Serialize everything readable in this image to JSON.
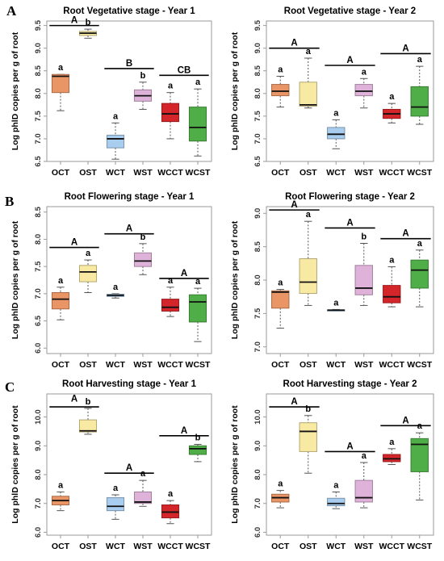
{
  "panel_labels": [
    "A",
    "B",
    "C"
  ],
  "colors": {
    "OCT": "#ea9566",
    "OST": "#f8e9a3",
    "WCT": "#a9cdef",
    "WST": "#dfb3d9",
    "WCCT": "#d4262a",
    "WCST": "#4fae47",
    "frame": "#9a9a9a",
    "text": "#000000"
  },
  "chart_data": [
    {
      "type": "box",
      "title": "Root Vegetative stage - Year 1",
      "ylabel": "Log phlD copies per g of root",
      "ylim": [
        6.5,
        9.6
      ],
      "yticks": [
        "6.5",
        "7.0",
        "7.5",
        "8.0",
        "8.5",
        "9.0",
        "9.5"
      ],
      "categories": [
        "OCT",
        "OST",
        "WCT",
        "WST",
        "WCCT",
        "WCST"
      ],
      "boxes": [
        {
          "min": 7.62,
          "q1": 8.02,
          "median": 8.38,
          "q3": 8.42,
          "max": 8.42,
          "letter": "a"
        },
        {
          "min": 9.22,
          "q1": 9.28,
          "median": 9.33,
          "q3": 9.37,
          "max": 9.42,
          "letter": "b"
        },
        {
          "min": 6.55,
          "q1": 6.8,
          "median": 7.0,
          "q3": 7.08,
          "max": 7.35,
          "letter": "a"
        },
        {
          "min": 7.65,
          "q1": 7.83,
          "median": 7.95,
          "q3": 8.08,
          "max": 8.25,
          "letter": "b"
        },
        {
          "min": 7.0,
          "q1": 7.38,
          "median": 7.55,
          "q3": 7.78,
          "max": 8.02,
          "letter": "a"
        },
        {
          "min": 6.62,
          "q1": 6.95,
          "median": 7.25,
          "q3": 7.7,
          "max": 8.1,
          "letter": "a"
        }
      ],
      "groups": [
        {
          "label": "A",
          "from": 0,
          "to": 1,
          "y": 9.5
        },
        {
          "label": "B",
          "from": 2,
          "to": 3,
          "y": 8.55
        },
        {
          "label": "CB",
          "from": 4,
          "to": 5,
          "y": 8.4
        }
      ]
    },
    {
      "type": "box",
      "title": "Root Vegetative stage - Year 2",
      "ylabel": "Log phlD copies per g of root",
      "ylim": [
        6.5,
        9.6
      ],
      "yticks": [
        "6.5",
        "7.0",
        "7.5",
        "8.0",
        "8.5",
        "9.0",
        "9.5"
      ],
      "categories": [
        "OCT",
        "OST",
        "WCT",
        "WST",
        "WCCT",
        "WCST"
      ],
      "boxes": [
        {
          "min": 7.7,
          "q1": 7.95,
          "median": 8.05,
          "q3": 8.2,
          "max": 8.38,
          "letter": "a"
        },
        {
          "min": 7.68,
          "q1": 7.72,
          "median": 7.75,
          "q3": 8.25,
          "max": 8.78,
          "letter": "a"
        },
        {
          "min": 6.78,
          "q1": 7.0,
          "median": 7.1,
          "q3": 7.25,
          "max": 7.42,
          "letter": "a"
        },
        {
          "min": 7.68,
          "q1": 7.95,
          "median": 8.05,
          "q3": 8.2,
          "max": 8.33,
          "letter": "a"
        },
        {
          "min": 7.35,
          "q1": 7.45,
          "median": 7.55,
          "q3": 7.65,
          "max": 7.78,
          "letter": "a"
        },
        {
          "min": 7.32,
          "q1": 7.5,
          "median": 7.7,
          "q3": 8.15,
          "max": 8.6,
          "letter": "a"
        }
      ],
      "groups": [
        {
          "label": "A",
          "from": 0,
          "to": 1,
          "y": 9.0
        },
        {
          "label": "A",
          "from": 2,
          "to": 3,
          "y": 8.62
        },
        {
          "label": "A",
          "from": 4,
          "to": 5,
          "y": 8.88
        }
      ]
    },
    {
      "type": "box",
      "title": "Root Flowering stage - Year 1",
      "ylabel": "Log phlD copies per g of root",
      "ylim": [
        5.9,
        8.6
      ],
      "yticks": [
        "6.0",
        "6.5",
        "7.0",
        "7.5",
        "8.0",
        "8.5"
      ],
      "categories": [
        "OCT",
        "OST",
        "WCT",
        "WST",
        "WCCT",
        "WCST"
      ],
      "boxes": [
        {
          "min": 6.52,
          "q1": 6.72,
          "median": 6.9,
          "q3": 7.02,
          "max": 7.12,
          "letter": "a"
        },
        {
          "min": 7.02,
          "q1": 7.22,
          "median": 7.4,
          "q3": 7.52,
          "max": 7.62,
          "letter": "a"
        },
        {
          "min": 6.92,
          "q1": 6.95,
          "median": 6.97,
          "q3": 6.99,
          "max": 7.0,
          "letter": "a"
        },
        {
          "min": 7.35,
          "q1": 7.5,
          "median": 7.6,
          "q3": 7.75,
          "max": 7.92,
          "letter": "b"
        },
        {
          "min": 6.58,
          "q1": 6.68,
          "median": 6.75,
          "q3": 6.9,
          "max": 7.12,
          "letter": "a"
        },
        {
          "min": 6.12,
          "q1": 6.48,
          "median": 6.85,
          "q3": 6.98,
          "max": 7.1,
          "letter": "a"
        }
      ],
      "groups": [
        {
          "label": "A",
          "from": 0,
          "to": 1,
          "y": 7.85
        },
        {
          "label": "A",
          "from": 2,
          "to": 3,
          "y": 8.1
        },
        {
          "label": "A",
          "from": 4,
          "to": 5,
          "y": 7.28
        }
      ]
    },
    {
      "type": "box",
      "title": "Root Flowering stage - Year 2",
      "ylabel": "Log phlD copies per g of root",
      "ylim": [
        6.9,
        9.1
      ],
      "yticks": [
        "7.0",
        "7.5",
        "8.0",
        "8.5",
        "9.0"
      ],
      "categories": [
        "OCT",
        "OST",
        "WCT",
        "WST",
        "WCCT",
        "WCST"
      ],
      "boxes": [
        {
          "min": 7.28,
          "q1": 7.58,
          "median": 7.82,
          "q3": 7.84,
          "max": 7.86,
          "letter": "a"
        },
        {
          "min": 7.62,
          "q1": 7.8,
          "median": 7.97,
          "q3": 8.32,
          "max": 8.88,
          "letter": "a"
        },
        {
          "min": 7.54,
          "q1": 7.545,
          "median": 7.55,
          "q3": 7.555,
          "max": 7.56,
          "letter": "a"
        },
        {
          "min": 7.62,
          "q1": 7.78,
          "median": 7.88,
          "q3": 8.22,
          "max": 8.55,
          "letter": "b"
        },
        {
          "min": 7.6,
          "q1": 7.66,
          "median": 7.75,
          "q3": 7.92,
          "max": 8.2,
          "letter": "a"
        },
        {
          "min": 7.6,
          "q1": 7.88,
          "median": 8.15,
          "q3": 8.3,
          "max": 8.45,
          "letter": "a"
        }
      ],
      "groups": [
        {
          "label": "A",
          "from": 0,
          "to": 1,
          "y": 9.05
        },
        {
          "label": "A",
          "from": 2,
          "to": 3,
          "y": 8.78
        },
        {
          "label": "A",
          "from": 4,
          "to": 5,
          "y": 8.62
        }
      ]
    },
    {
      "type": "box",
      "title": "Root Harvesting stage - Year 1",
      "ylabel": "Log phlD copies per g of root",
      "ylim": [
        5.9,
        10.8
      ],
      "yticks": [
        "6.0",
        "7.0",
        "8.0",
        "9.0",
        "10.0"
      ],
      "categories": [
        "OCT",
        "OST",
        "WCT",
        "WST",
        "WCCT",
        "WCST"
      ],
      "boxes": [
        {
          "min": 6.75,
          "q1": 6.95,
          "median": 7.1,
          "q3": 7.25,
          "max": 7.4,
          "letter": "a"
        },
        {
          "min": 9.4,
          "q1": 9.48,
          "median": 9.52,
          "q3": 9.9,
          "max": 10.3,
          "letter": "b"
        },
        {
          "min": 6.45,
          "q1": 6.75,
          "median": 6.9,
          "q3": 7.2,
          "max": 7.3,
          "letter": "a"
        },
        {
          "min": 6.9,
          "q1": 7.0,
          "median": 7.05,
          "q3": 7.4,
          "max": 7.8,
          "letter": "a"
        },
        {
          "min": 6.3,
          "q1": 6.5,
          "median": 6.7,
          "q3": 6.95,
          "max": 7.1,
          "letter": "a"
        },
        {
          "min": 8.45,
          "q1": 8.7,
          "median": 8.9,
          "q3": 9.0,
          "max": 9.05,
          "letter": "b"
        }
      ],
      "groups": [
        {
          "label": "A",
          "from": 0,
          "to": 0,
          "y": 10.45
        },
        {
          "label": "A",
          "from": 2,
          "to": 3,
          "y": 8.05
        },
        {
          "label": "A",
          "from": 4,
          "to": 5,
          "y": 9.35
        }
      ],
      "group_line": [
        0,
        1,
        10.35
      ]
    },
    {
      "type": "box",
      "title": "Root  Harvesting stage - Year 2",
      "ylabel": "Log phlD copies per g of root",
      "ylim": [
        5.9,
        10.8
      ],
      "yticks": [
        "6.0",
        "7.0",
        "8.0",
        "9.0",
        "10.0"
      ],
      "categories": [
        "OCT",
        "OST",
        "WCT",
        "WST",
        "WCCT",
        "WCST"
      ],
      "boxes": [
        {
          "min": 6.85,
          "q1": 7.05,
          "median": 7.2,
          "q3": 7.32,
          "max": 7.45,
          "letter": "a"
        },
        {
          "min": 8.05,
          "q1": 8.8,
          "median": 9.5,
          "q3": 9.8,
          "max": 10.05,
          "letter": "b"
        },
        {
          "min": 6.82,
          "q1": 6.92,
          "median": 7.0,
          "q3": 7.18,
          "max": 7.4,
          "letter": "a"
        },
        {
          "min": 6.85,
          "q1": 7.05,
          "median": 7.2,
          "q3": 7.8,
          "max": 8.42,
          "letter": "a"
        },
        {
          "min": 8.35,
          "q1": 8.45,
          "median": 8.55,
          "q3": 8.7,
          "max": 8.9,
          "letter": "a"
        },
        {
          "min": 7.12,
          "q1": 8.1,
          "median": 9.05,
          "q3": 9.25,
          "max": 9.45,
          "letter": "a"
        }
      ],
      "groups": [
        {
          "label": "A",
          "from": 0,
          "to": 1,
          "y": 10.35
        },
        {
          "label": "A",
          "from": 2,
          "to": 3,
          "y": 8.8
        },
        {
          "label": "A",
          "from": 4,
          "to": 5,
          "y": 9.7
        }
      ]
    }
  ]
}
